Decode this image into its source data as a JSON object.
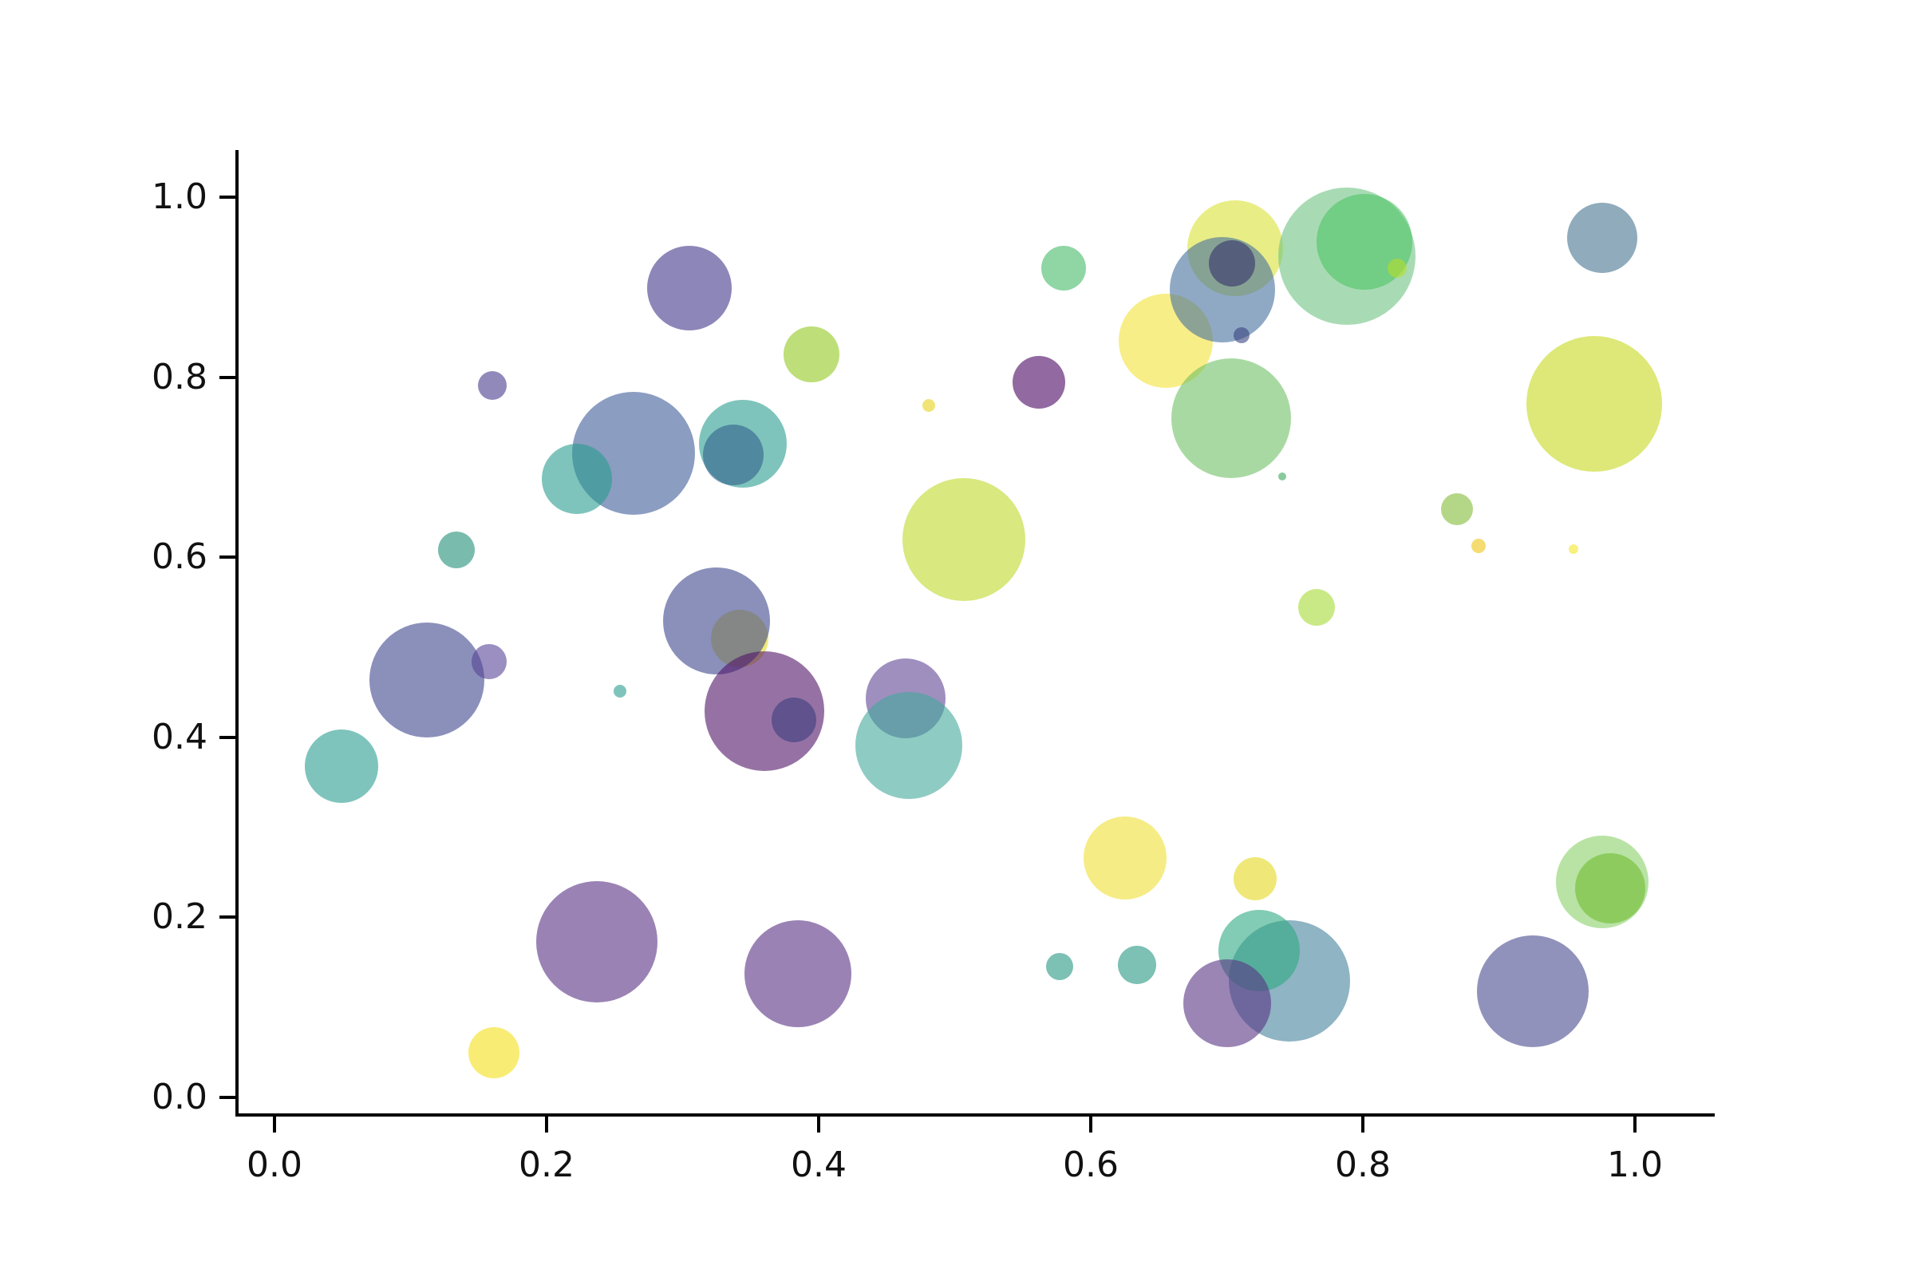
{
  "figure": {
    "kind": "matplotlib-style bubble scatter plot",
    "background": "#ffffff",
    "spine_color": "#000000",
    "tick_label_color": "#111111"
  },
  "chart_data": {
    "type": "scatter",
    "title": "",
    "xlabel": "",
    "ylabel": "",
    "legend": null,
    "grid": false,
    "x_tick_labels": [
      "0.0",
      "0.2",
      "0.4",
      "0.6",
      "0.8",
      "1.0"
    ],
    "y_tick_labels": [
      "0.0",
      "0.2",
      "0.4",
      "0.6",
      "0.8",
      "1.0"
    ],
    "x_tick_values": [
      0.0,
      0.2,
      0.4,
      0.6,
      0.8,
      1.0
    ],
    "y_tick_values": [
      0.0,
      0.2,
      0.4,
      0.6,
      0.8,
      1.0
    ],
    "xlim": [
      -0.029,
      1.058
    ],
    "ylim": [
      -0.02,
      1.052
    ],
    "marker_alpha": 0.6,
    "colormap": "viridis",
    "points": [
      {
        "x": 0.655,
        "y": 0.84,
        "r": 59,
        "color": "#f3e338"
      },
      {
        "x": 0.706,
        "y": 0.943,
        "r": 60,
        "color": "#dae135"
      },
      {
        "x": 0.697,
        "y": 0.897,
        "r": 66,
        "color": "#44709e"
      },
      {
        "x": 0.704,
        "y": 0.926,
        "r": 29,
        "color": "#363169"
      },
      {
        "x": 0.711,
        "y": 0.847,
        "r": 10,
        "color": "#39427e"
      },
      {
        "x": 0.788,
        "y": 0.934,
        "r": 86,
        "color": "#6ec382"
      },
      {
        "x": 0.801,
        "y": 0.95,
        "r": 60,
        "color": "#4ec366"
      },
      {
        "x": 0.825,
        "y": 0.921,
        "r": 12,
        "color": "#b5de2b"
      },
      {
        "x": 0.305,
        "y": 0.899,
        "r": 53,
        "color": "#413589"
      },
      {
        "x": 0.16,
        "y": 0.791,
        "r": 18,
        "color": "#473a8c"
      },
      {
        "x": 0.395,
        "y": 0.825,
        "r": 35,
        "color": "#93c820"
      },
      {
        "x": 0.58,
        "y": 0.921,
        "r": 28,
        "color": "#44bb67"
      },
      {
        "x": 0.562,
        "y": 0.794,
        "r": 33,
        "color": "#4a0560"
      },
      {
        "x": 0.481,
        "y": 0.769,
        "r": 8,
        "color": "#e8d21b"
      },
      {
        "x": 0.264,
        "y": 0.715,
        "r": 77,
        "color": "#3e5c98"
      },
      {
        "x": 0.222,
        "y": 0.687,
        "r": 44,
        "color": "#289d8f"
      },
      {
        "x": 0.344,
        "y": 0.726,
        "r": 55,
        "color": "#289d8f"
      },
      {
        "x": 0.337,
        "y": 0.714,
        "r": 38,
        "color": "#31618c"
      },
      {
        "x": 0.134,
        "y": 0.608,
        "r": 23,
        "color": "#208f78"
      },
      {
        "x": 0.112,
        "y": 0.464,
        "r": 72,
        "color": "#3c468c"
      },
      {
        "x": 0.158,
        "y": 0.484,
        "r": 22,
        "color": "#574496"
      },
      {
        "x": 0.254,
        "y": 0.451,
        "r": 8,
        "color": "#2a9d8f"
      },
      {
        "x": 0.342,
        "y": 0.51,
        "r": 36,
        "color": "#e8da23"
      },
      {
        "x": 0.325,
        "y": 0.529,
        "r": 67,
        "color": "#3c468c"
      },
      {
        "x": 0.36,
        "y": 0.429,
        "r": 75,
        "color": "#501467"
      },
      {
        "x": 0.382,
        "y": 0.419,
        "r": 28,
        "color": "#3a3d7f"
      },
      {
        "x": 0.464,
        "y": 0.443,
        "r": 50,
        "color": "#5f4494"
      },
      {
        "x": 0.466,
        "y": 0.391,
        "r": 67,
        "color": "#43a89b"
      },
      {
        "x": 0.507,
        "y": 0.62,
        "r": 77,
        "color": "#c0d92a"
      },
      {
        "x": 0.703,
        "y": 0.754,
        "r": 75,
        "color": "#70c064"
      },
      {
        "x": 0.766,
        "y": 0.544,
        "r": 23,
        "color": "#a5db36"
      },
      {
        "x": 0.741,
        "y": 0.69,
        "r": 5,
        "color": "#3aa65c"
      },
      {
        "x": 0.869,
        "y": 0.653,
        "r": 20,
        "color": "#82bc37"
      },
      {
        "x": 0.885,
        "y": 0.613,
        "r": 9,
        "color": "#edc416"
      },
      {
        "x": 0.955,
        "y": 0.609,
        "r": 6,
        "color": "#f5e62a"
      },
      {
        "x": 0.976,
        "y": 0.955,
        "r": 44,
        "color": "#44738f"
      },
      {
        "x": 0.97,
        "y": 0.77,
        "r": 85,
        "color": "#c6d91e"
      },
      {
        "x": 0.746,
        "y": 0.129,
        "r": 76,
        "color": "#44829b"
      },
      {
        "x": 0.724,
        "y": 0.163,
        "r": 51,
        "color": "#2fa882"
      },
      {
        "x": 0.7,
        "y": 0.105,
        "r": 55,
        "color": "#583484"
      },
      {
        "x": 0.925,
        "y": 0.118,
        "r": 70,
        "color": "#46498e"
      },
      {
        "x": 0.976,
        "y": 0.239,
        "r": 58,
        "color": "#89d067"
      },
      {
        "x": 0.982,
        "y": 0.232,
        "r": 44,
        "color": "#6fbb31"
      },
      {
        "x": 0.237,
        "y": 0.173,
        "r": 76,
        "color": "#573082"
      },
      {
        "x": 0.385,
        "y": 0.137,
        "r": 67,
        "color": "#573082"
      },
      {
        "x": 0.577,
        "y": 0.145,
        "r": 17,
        "color": "#269682"
      },
      {
        "x": 0.634,
        "y": 0.147,
        "r": 24,
        "color": "#269682"
      },
      {
        "x": 0.625,
        "y": 0.266,
        "r": 52,
        "color": "#f0df34"
      },
      {
        "x": 0.721,
        "y": 0.243,
        "r": 27,
        "color": "#e5d91f"
      },
      {
        "x": 0.049,
        "y": 0.368,
        "r": 46,
        "color": "#289d8f"
      },
      {
        "x": 0.161,
        "y": 0.05,
        "r": 32,
        "color": "#f3df19"
      }
    ]
  }
}
